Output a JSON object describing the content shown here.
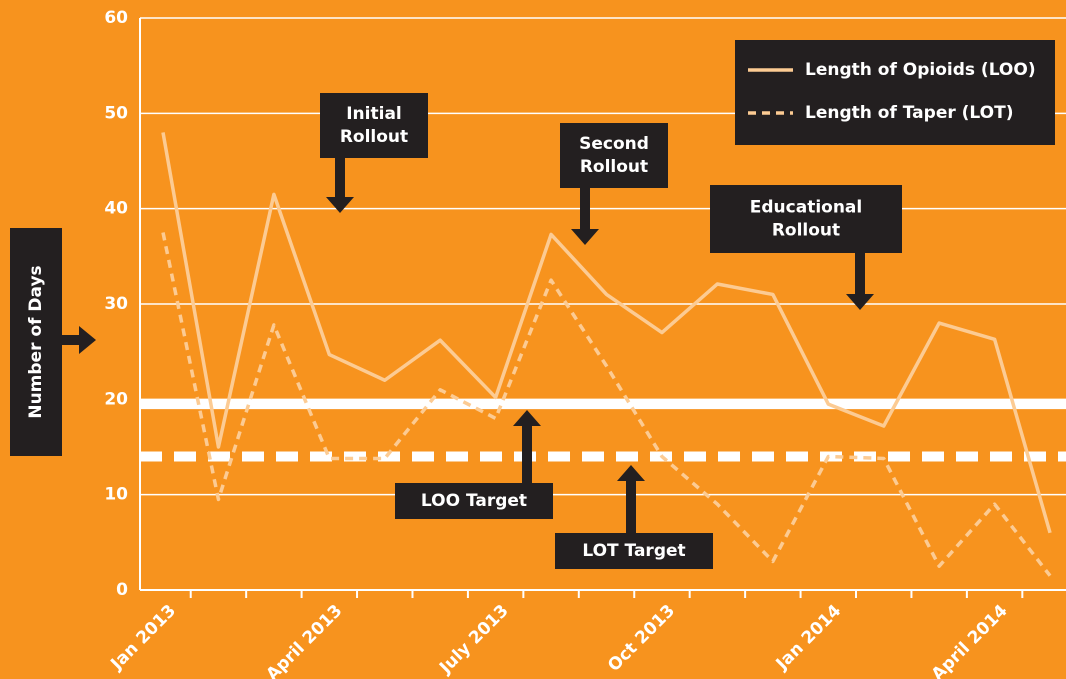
{
  "chart_data": {
    "type": "line",
    "y_label": "Number of Days",
    "categories": [
      "Jan 2013",
      null,
      null,
      "April 2013",
      null,
      null,
      "July 2013",
      null,
      null,
      "Oct 2013",
      null,
      null,
      "Jan 2014",
      null,
      null,
      "April 2014",
      null
    ],
    "series": [
      {
        "name": "Length of Opioids (LOO)",
        "color": "#fccb93",
        "dashed": false,
        "values": [
          48,
          15,
          41.5,
          24.7,
          22,
          26.2,
          20.2,
          37.3,
          31,
          27,
          32.1,
          31,
          19.5,
          17.2,
          28,
          26.3,
          6
        ]
      },
      {
        "name": "Length of Taper (LOT)",
        "color": "#fccb93",
        "dashed": true,
        "values": [
          37.5,
          9.5,
          27.8,
          13.8,
          13.8,
          21,
          18,
          32.5,
          23.5,
          14,
          9,
          3,
          14,
          13.8,
          2.5,
          9,
          1.5
        ]
      }
    ],
    "targets": [
      {
        "name": "LOO Target",
        "value": 19.5,
        "dashed": false
      },
      {
        "name": "LOT Target",
        "value": 14,
        "dashed": true
      }
    ],
    "annotations": [
      [
        "Initial",
        "Rollout"
      ],
      [
        "Second",
        "Rollout"
      ],
      [
        "Educational",
        "Rollout"
      ]
    ],
    "ylim": [
      0,
      60
    ],
    "yticks": [
      0,
      10,
      20,
      30,
      40,
      50,
      60
    ],
    "grid": true,
    "legend": "upper right"
  }
}
